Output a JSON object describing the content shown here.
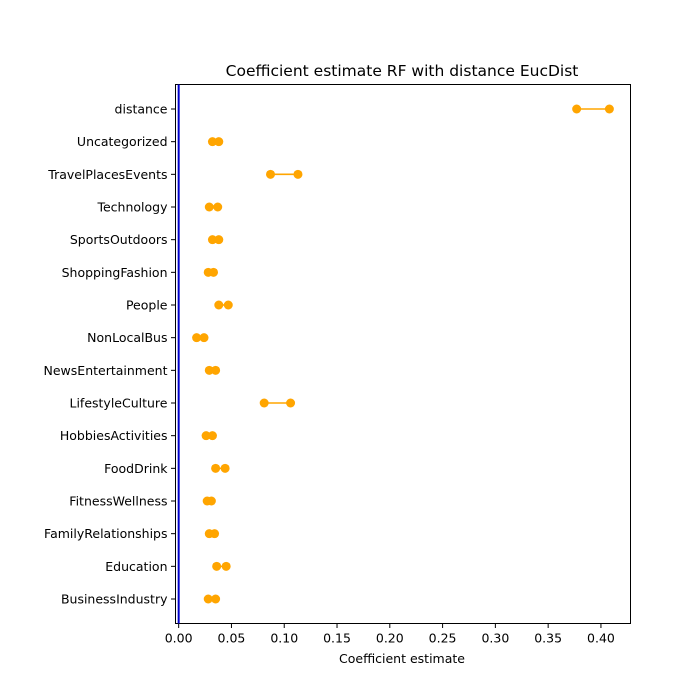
{
  "chart_data": {
    "type": "dumbbell",
    "title": "Coefficient estimate RF  with distance EucDist",
    "xlabel": "Coefficient estimate",
    "ylabel": "",
    "xlim": [
      -0.003,
      0.428
    ],
    "xticks": [
      0.0,
      0.05,
      0.1,
      0.15,
      0.2,
      0.25,
      0.3,
      0.35,
      0.4
    ],
    "xtick_labels": [
      "0.00",
      "0.05",
      "0.10",
      "0.15",
      "0.20",
      "0.25",
      "0.30",
      "0.35",
      "0.40"
    ],
    "grid": false,
    "reference_line": {
      "x": 0.0,
      "color": "#0000cc"
    },
    "marker_color": "#ffa500",
    "categories": [
      "distance",
      "Uncategorized",
      "TravelPlacesEvents",
      "Technology",
      "SportsOutdoors",
      "ShoppingFashion",
      "People",
      "NonLocalBus",
      "NewsEntertainment",
      "LifestyleCulture",
      "HobbiesActivities",
      "FoodDrink",
      "FitnessWellness",
      "FamilyRelationships",
      "Education",
      "BusinessIndustry"
    ],
    "low": [
      0.377,
      0.032,
      0.087,
      0.029,
      0.032,
      0.028,
      0.038,
      0.017,
      0.029,
      0.081,
      0.026,
      0.035,
      0.027,
      0.029,
      0.036,
      0.028
    ],
    "high": [
      0.408,
      0.038,
      0.113,
      0.037,
      0.038,
      0.033,
      0.047,
      0.024,
      0.035,
      0.106,
      0.032,
      0.044,
      0.031,
      0.034,
      0.045,
      0.035
    ]
  }
}
